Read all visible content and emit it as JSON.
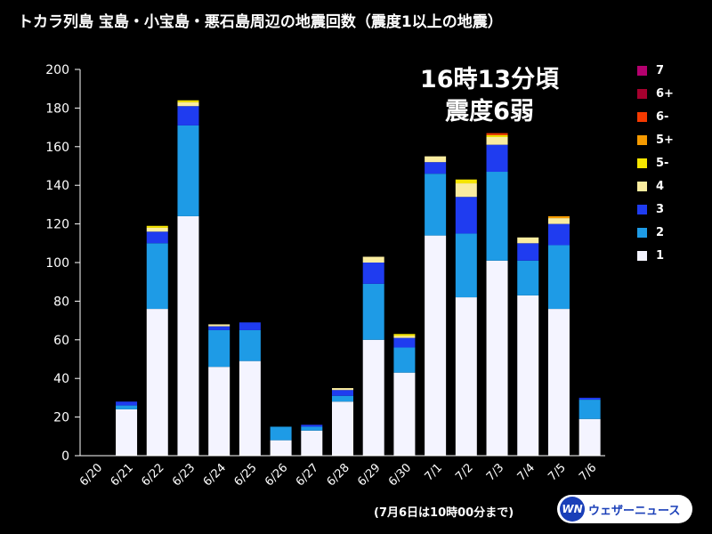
{
  "header": {
    "title": "トカラ列島 宝島・小宝島・悪石島周辺の地震回数（震度1以上の地震）"
  },
  "annotation": {
    "line1": "16時13分頃",
    "line2": "震度6弱"
  },
  "footnote": "(7月6日は10時00分まで)",
  "logo": {
    "mark": "WN",
    "text": "ウェザーニュース"
  },
  "chart_data": {
    "type": "bar",
    "stacked": true,
    "categories": [
      "6/20",
      "6/21",
      "6/22",
      "6/23",
      "6/24",
      "6/25",
      "6/26",
      "6/27",
      "6/28",
      "6/29",
      "6/30",
      "7/1",
      "7/2",
      "7/3",
      "7/4",
      "7/5",
      "7/6"
    ],
    "ylim": [
      0,
      200
    ],
    "yticks": [
      0,
      20,
      40,
      60,
      80,
      100,
      120,
      140,
      160,
      180,
      200
    ],
    "grid": false,
    "legend_position": "right",
    "series": [
      {
        "name": "1",
        "color": "#f4f4ff",
        "values": [
          0,
          24,
          76,
          124,
          46,
          49,
          8,
          13,
          28,
          60,
          43,
          114,
          82,
          101,
          83,
          76,
          19
        ]
      },
      {
        "name": "2",
        "color": "#1e9be6",
        "values": [
          0,
          2,
          34,
          47,
          19,
          16,
          7,
          2,
          3,
          29,
          13,
          32,
          33,
          46,
          18,
          33,
          10
        ]
      },
      {
        "name": "3",
        "color": "#1f3cf0",
        "values": [
          0,
          2,
          6,
          10,
          2,
          4,
          0,
          1,
          3,
          11,
          5,
          6,
          19,
          14,
          9,
          11,
          1
        ]
      },
      {
        "name": "4",
        "color": "#faec9f",
        "values": [
          0,
          0,
          2,
          2,
          1,
          0,
          0,
          0,
          1,
          3,
          1,
          3,
          7,
          4,
          3,
          3,
          0
        ]
      },
      {
        "name": "5-",
        "color": "#f5e500",
        "values": [
          0,
          0,
          1,
          1,
          0,
          0,
          0,
          0,
          0,
          0,
          1,
          0,
          2,
          1,
          0,
          0,
          0
        ]
      },
      {
        "name": "5+",
        "color": "#f59a00",
        "values": [
          0,
          0,
          0,
          0,
          0,
          0,
          0,
          0,
          0,
          0,
          0,
          0,
          0,
          0,
          0,
          1,
          0
        ]
      },
      {
        "name": "6-",
        "color": "#f53a00",
        "values": [
          0,
          0,
          0,
          0,
          0,
          0,
          0,
          0,
          0,
          0,
          0,
          0,
          0,
          1,
          0,
          0,
          0
        ]
      },
      {
        "name": "6+",
        "color": "#a5002e",
        "values": [
          0,
          0,
          0,
          0,
          0,
          0,
          0,
          0,
          0,
          0,
          0,
          0,
          0,
          0,
          0,
          0,
          0
        ]
      },
      {
        "name": "7",
        "color": "#b4006e",
        "values": [
          0,
          0,
          0,
          0,
          0,
          0,
          0,
          0,
          0,
          0,
          0,
          0,
          0,
          0,
          0,
          0,
          0
        ]
      }
    ]
  }
}
